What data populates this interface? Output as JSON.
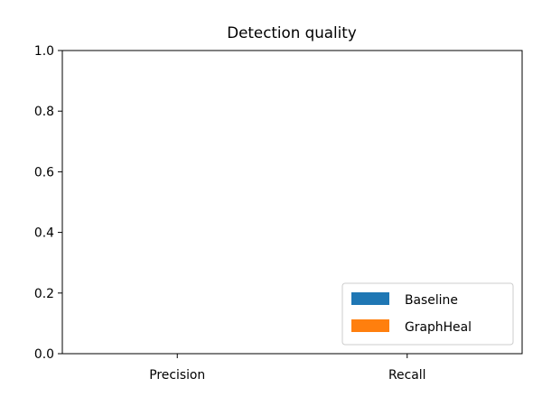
{
  "chart_data": {
    "type": "bar",
    "title": "Detection quality",
    "xlabel": "",
    "ylabel": "",
    "categories": [
      "Precision",
      "Recall"
    ],
    "series": [
      {
        "name": "Baseline",
        "values": [
          0,
          0
        ],
        "color": "#1f77b4"
      },
      {
        "name": "GraphHeal",
        "values": [
          0,
          0
        ],
        "color": "#ff7f0e"
      }
    ],
    "ylim": [
      0,
      1.0
    ],
    "yticks": [
      "0.0",
      "0.2",
      "0.4",
      "0.6",
      "0.8",
      "1.0"
    ],
    "grid": false,
    "legend_position": "lower right"
  }
}
